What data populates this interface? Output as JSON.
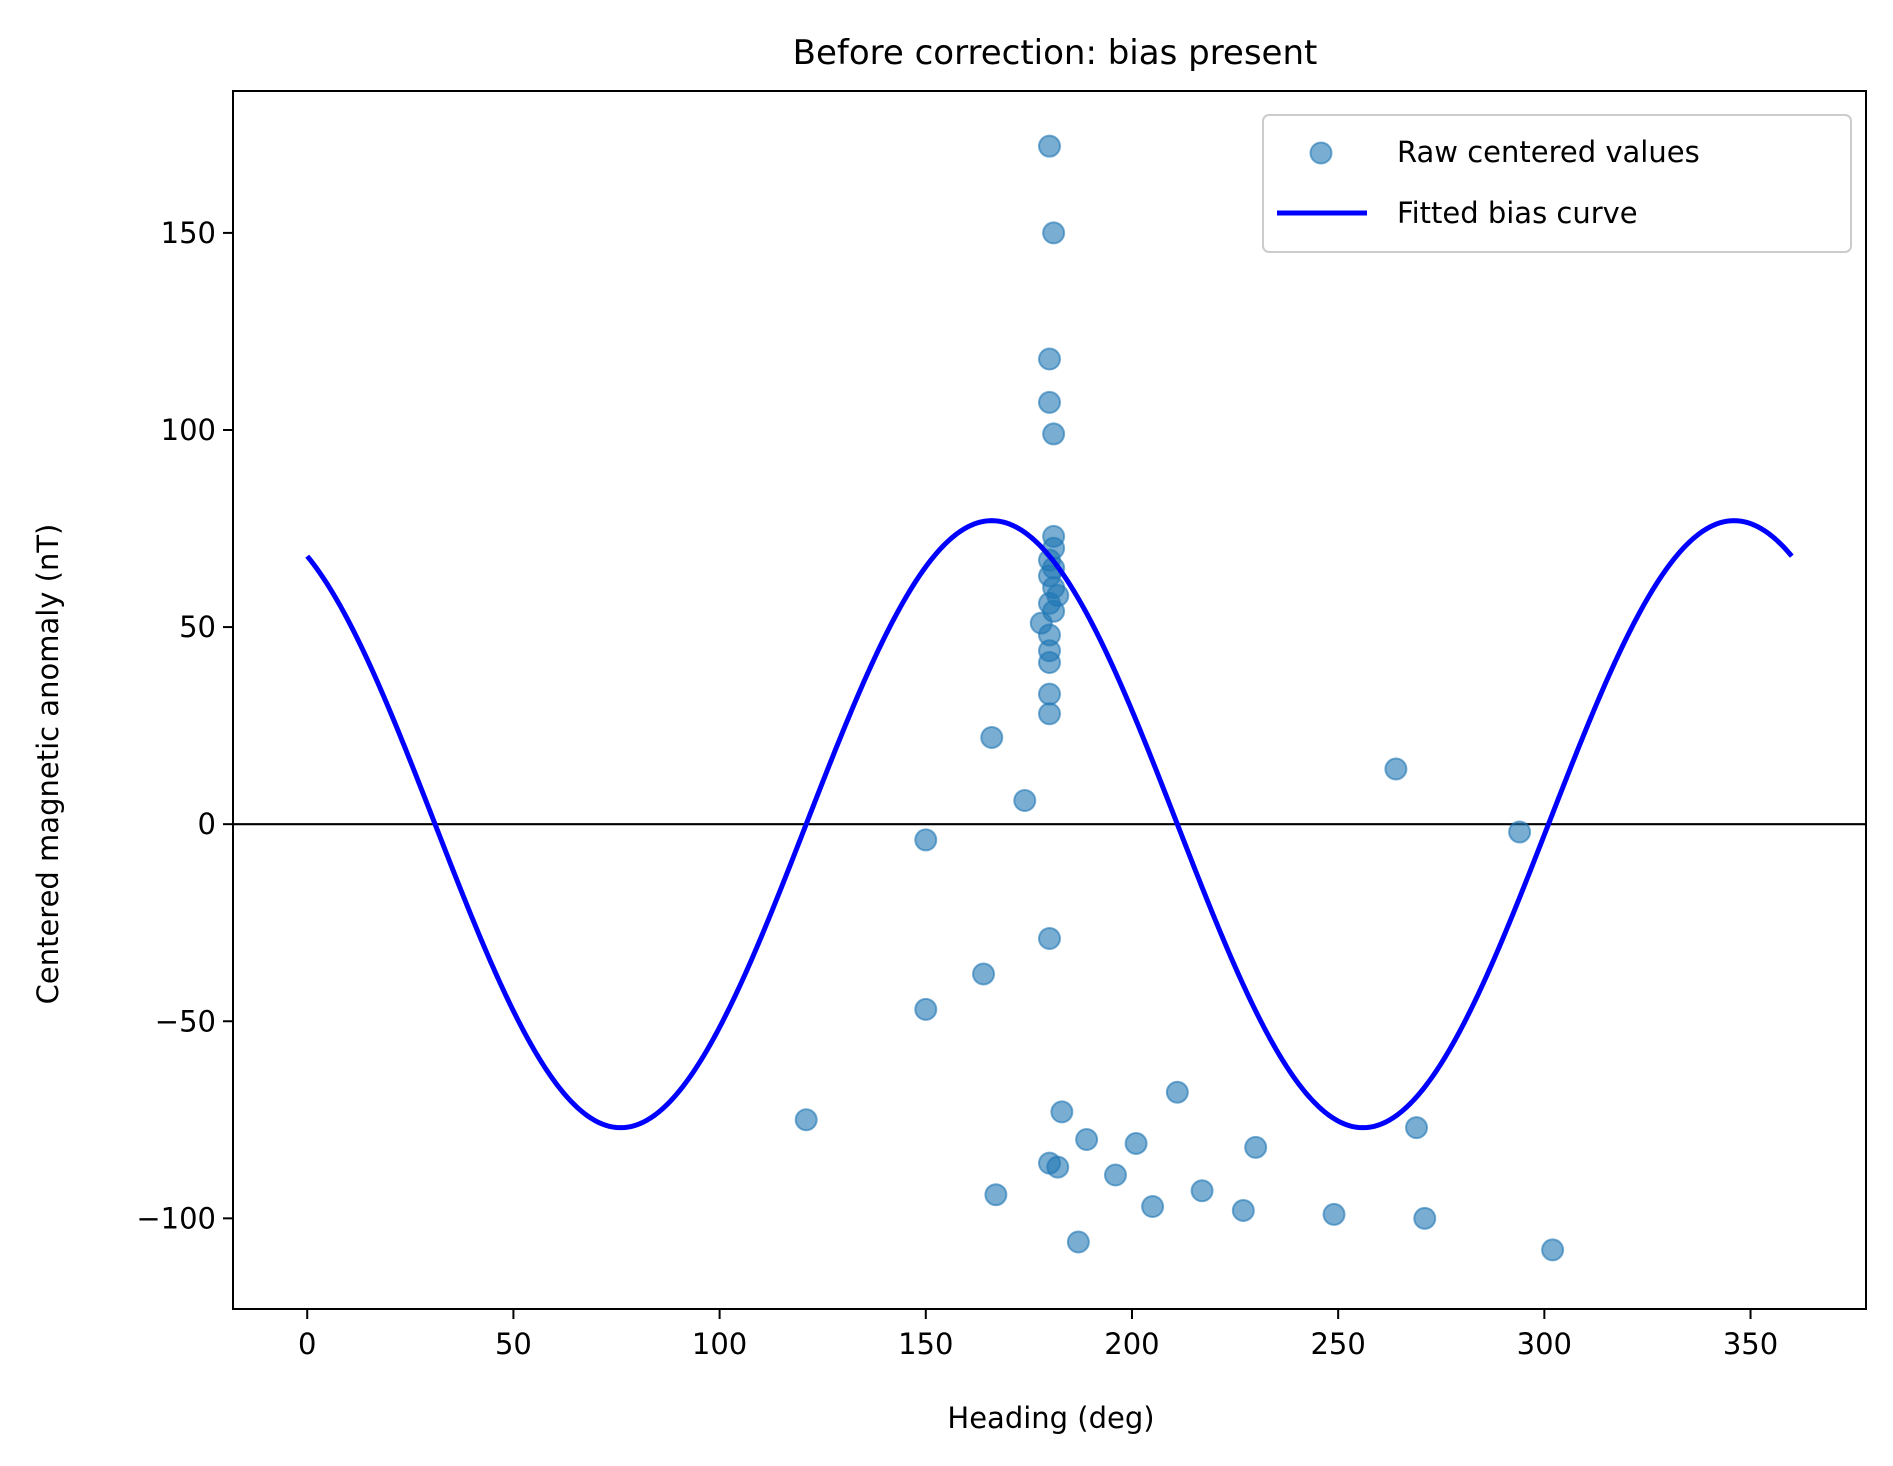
{
  "chart_data": {
    "type": "scatter",
    "title": "Before correction: bias present",
    "xlabel": "Heading (deg)",
    "ylabel": "Centered magnetic anomaly (nT)",
    "xlim": [
      -18,
      378
    ],
    "ylim": [
      -123,
      186
    ],
    "xticks": [
      0,
      50,
      100,
      150,
      200,
      250,
      300,
      350
    ],
    "yticks": [
      -100,
      -50,
      0,
      50,
      100,
      150
    ],
    "grid": false,
    "legend_position": "top-right",
    "reference_line_y": 0,
    "colors": {
      "scatter": "#1f77b4",
      "curve": "#0000ff",
      "reference_line": "#000000"
    },
    "series": [
      {
        "name": "Raw centered values",
        "kind": "scatter",
        "points": [
          [
            180,
            172
          ],
          [
            181,
            150
          ],
          [
            180,
            118
          ],
          [
            180,
            107
          ],
          [
            181,
            99
          ],
          [
            181,
            73
          ],
          [
            181,
            70
          ],
          [
            180,
            67
          ],
          [
            181,
            65
          ],
          [
            180,
            63
          ],
          [
            181,
            60
          ],
          [
            182,
            58
          ],
          [
            180,
            56
          ],
          [
            181,
            54
          ],
          [
            178,
            51
          ],
          [
            180,
            48
          ],
          [
            180,
            44
          ],
          [
            180,
            41
          ],
          [
            180,
            33
          ],
          [
            180,
            28
          ],
          [
            166,
            22
          ],
          [
            174,
            6
          ],
          [
            264,
            14
          ],
          [
            294,
            -2
          ],
          [
            150,
            -4
          ],
          [
            180,
            -29
          ],
          [
            164,
            -38
          ],
          [
            150,
            -47
          ],
          [
            121,
            -75
          ],
          [
            183,
            -73
          ],
          [
            211,
            -68
          ],
          [
            269,
            -77
          ],
          [
            189,
            -80
          ],
          [
            201,
            -81
          ],
          [
            230,
            -82
          ],
          [
            180,
            -86
          ],
          [
            182,
            -87
          ],
          [
            196,
            -89
          ],
          [
            217,
            -93
          ],
          [
            167,
            -94
          ],
          [
            205,
            -97
          ],
          [
            227,
            -98
          ],
          [
            249,
            -99
          ],
          [
            271,
            -100
          ],
          [
            187,
            -106
          ],
          [
            302,
            -108
          ]
        ]
      },
      {
        "name": "Fitted bias curve",
        "kind": "line",
        "amplitude": 77,
        "peak_heading": 166,
        "period": 180,
        "x_range": [
          0,
          360
        ]
      }
    ]
  }
}
